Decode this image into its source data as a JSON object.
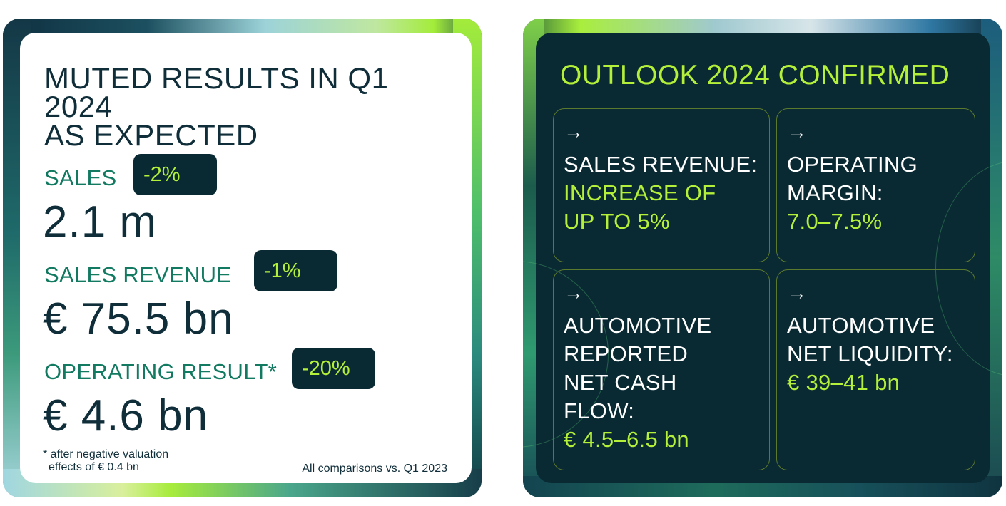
{
  "left_panel": {
    "title_line1": "MUTED RESULTS IN Q1 2024",
    "title_line2": "AS EXPECTED",
    "metrics": [
      {
        "label": "SALES",
        "change": "-2%",
        "value": "2.1 m"
      },
      {
        "label": "SALES REVENUE",
        "change": "-1%",
        "value": "€ 75.5 bn"
      },
      {
        "label": "OPERATING RESULT*",
        "change": "-20%",
        "value": "€ 4.6 bn"
      }
    ],
    "footnote_line1": "* after negative valuation",
    "footnote_line2": "effects of € 0.4 bn",
    "comparison_note": "All comparisons vs. Q1 2023"
  },
  "right_panel": {
    "title": "OUTLOOK 2024 CONFIRMED",
    "arrow_glyph": "→",
    "tiles": [
      {
        "label_lines": [
          "SALES REVENUE:"
        ],
        "value_lines": [
          "INCREASE OF",
          "UP TO 5%"
        ]
      },
      {
        "label_lines": [
          "OPERATING",
          "MARGIN:"
        ],
        "value_lines": [
          "7.0–7.5%"
        ]
      },
      {
        "label_lines": [
          "AUTOMOTIVE",
          "REPORTED",
          "NET CASH",
          "FLOW:"
        ],
        "value_lines": [
          "€ 4.5–6.5 bn"
        ]
      },
      {
        "label_lines": [
          "AUTOMOTIVE",
          "NET LIQUIDITY:"
        ],
        "value_lines": [
          "€ 39–41 bn"
        ]
      }
    ]
  },
  "colors": {
    "accent_green": "#b4f03a",
    "dark_navy": "#0a2a33",
    "teal_label": "#127a61"
  }
}
